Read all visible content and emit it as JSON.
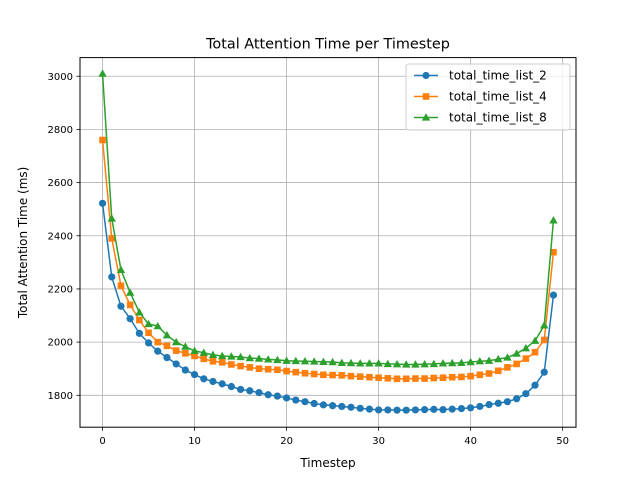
{
  "chart_data": {
    "type": "line",
    "title": "Total Attention Time per Timestep",
    "xlabel": "Timestep",
    "ylabel": "Total Attention Time (ms)",
    "xlim": [
      -2.45,
      51.45
    ],
    "ylim": [
      1680,
      3070
    ],
    "xticks": [
      0,
      10,
      20,
      30,
      40,
      50
    ],
    "yticks": [
      1800,
      2000,
      2200,
      2400,
      2600,
      2800,
      3000
    ],
    "grid": true,
    "legend_position": "upper right",
    "x": [
      0,
      1,
      2,
      3,
      4,
      5,
      6,
      7,
      8,
      9,
      10,
      11,
      12,
      13,
      14,
      15,
      16,
      17,
      18,
      19,
      20,
      21,
      22,
      23,
      24,
      25,
      26,
      27,
      28,
      29,
      30,
      31,
      32,
      33,
      34,
      35,
      36,
      37,
      38,
      39,
      40,
      41,
      42,
      43,
      44,
      45,
      46,
      47,
      48,
      49
    ],
    "series": [
      {
        "name": "total_time_list_2",
        "color": "#1f77b4",
        "marker": "circle",
        "values": [
          2522,
          2245,
          2135,
          2088,
          2033,
          1997,
          1966,
          1942,
          1918,
          1895,
          1878,
          1862,
          1852,
          1843,
          1833,
          1822,
          1817,
          1810,
          1802,
          1797,
          1790,
          1782,
          1776,
          1769,
          1764,
          1761,
          1758,
          1755,
          1751,
          1748,
          1745,
          1745,
          1744,
          1744,
          1745,
          1746,
          1747,
          1746,
          1748,
          1750,
          1753,
          1758,
          1765,
          1770,
          1776,
          1787,
          1806,
          1838,
          1887,
          2177
        ]
      },
      {
        "name": "total_time_list_4",
        "color": "#ff7f0e",
        "marker": "square",
        "values": [
          2760,
          2390,
          2212,
          2140,
          2083,
          2035,
          2000,
          1986,
          1968,
          1958,
          1948,
          1937,
          1928,
          1924,
          1916,
          1910,
          1905,
          1900,
          1898,
          1896,
          1891,
          1887,
          1883,
          1880,
          1877,
          1876,
          1875,
          1872,
          1870,
          1868,
          1866,
          1864,
          1862,
          1862,
          1863,
          1863,
          1865,
          1866,
          1868,
          1869,
          1872,
          1877,
          1882,
          1892,
          1905,
          1918,
          1938,
          1962,
          2008,
          2338
        ]
      },
      {
        "name": "total_time_list_8",
        "color": "#2ca02c",
        "marker": "triangle",
        "values": [
          3010,
          2465,
          2272,
          2186,
          2112,
          2068,
          2060,
          2026,
          2000,
          1983,
          1967,
          1960,
          1952,
          1948,
          1946,
          1944,
          1940,
          1938,
          1935,
          1933,
          1930,
          1929,
          1928,
          1927,
          1926,
          1925,
          1922,
          1921,
          1920,
          1920,
          1920,
          1918,
          1917,
          1916,
          1916,
          1917,
          1918,
          1920,
          1921,
          1922,
          1925,
          1928,
          1930,
          1936,
          1942,
          1957,
          1977,
          2005,
          2063,
          2458
        ]
      }
    ]
  }
}
